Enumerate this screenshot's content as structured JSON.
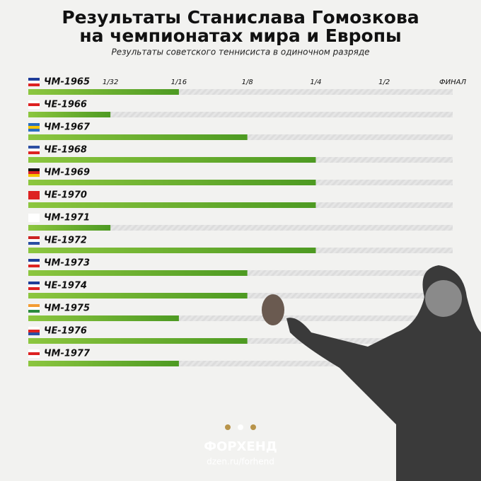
{
  "chart_data": {
    "type": "bar",
    "title": [
      "Результаты Станислава Гомозкова",
      "на чемпионатах мира и Европы"
    ],
    "subtitle": "Результаты советского теннисиста в одиночном разряде",
    "categories": [
      "ЧМ-1965",
      "ЧЕ-1966",
      "ЧМ-1967",
      "ЧЕ-1968",
      "ЧМ-1969",
      "ЧЕ-1970",
      "ЧМ-1971",
      "ЧЕ-1972",
      "ЧМ-1973",
      "ЧЕ-1974",
      "ЧМ-1975",
      "ЧЕ-1976",
      "ЧМ-1977"
    ],
    "values": [
      2,
      1,
      3,
      4,
      4,
      4,
      1,
      4,
      3,
      3,
      2,
      3,
      2
    ],
    "color": "#6aaa2a",
    "xlim": [
      -0.2,
      6
    ],
    "xticks": [
      {
        "value": 1,
        "label": "1/32"
      },
      {
        "value": 2,
        "label": "1/16"
      },
      {
        "value": 3,
        "label": "1/8"
      },
      {
        "value": 4,
        "label": "1/4"
      },
      {
        "value": 5,
        "label": "1/2"
      },
      {
        "value": 6,
        "label": "ФИНАЛ"
      }
    ]
  },
  "brand": "ФОРХЕНД",
  "url": "dzen.ru/forhend"
}
